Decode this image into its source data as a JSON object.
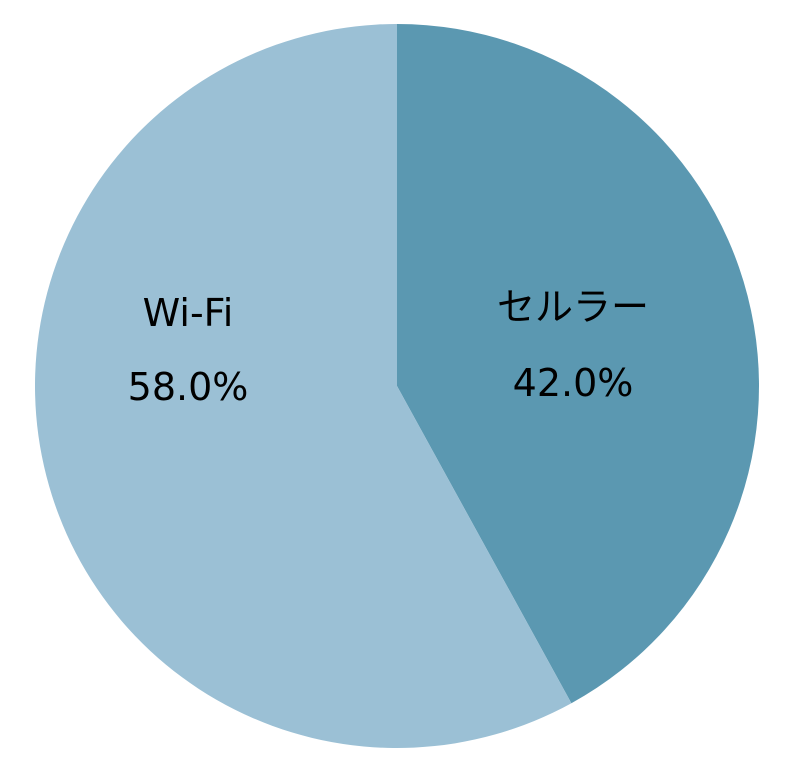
{
  "chart_data": {
    "type": "pie",
    "title": "",
    "slices": [
      {
        "label": "セルラー",
        "value": 42.0,
        "value_label": "42.0%",
        "color": "#5b98b1"
      },
      {
        "label": "Wi-Fi",
        "value": 58.0,
        "value_label": "58.0%",
        "color": "#9bc0d5"
      }
    ],
    "start_angle": "12 o'clock",
    "direction": "clockwise",
    "legend": "none"
  }
}
